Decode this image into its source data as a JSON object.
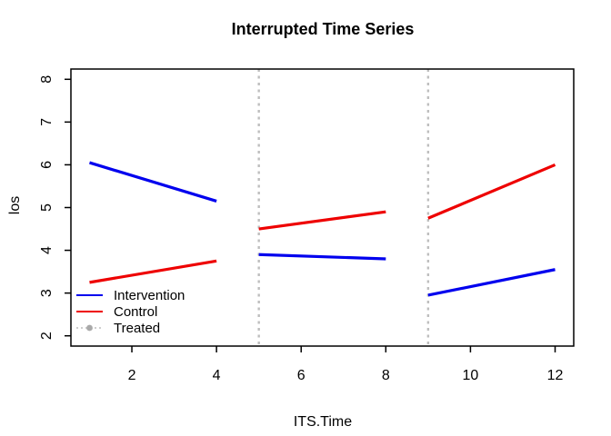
{
  "chart_data": {
    "type": "line",
    "title": "Interrupted Time Series",
    "xlabel": "ITS.Time",
    "ylabel": "los",
    "xlim": [
      0.56,
      12.44
    ],
    "ylim": [
      1.76,
      8.24
    ],
    "xticks": [
      2,
      4,
      6,
      8,
      10,
      12
    ],
    "yticks": [
      2,
      3,
      4,
      5,
      6,
      7,
      8
    ],
    "grid": false,
    "axis_color": "#000000",
    "background": "#FFFFFF",
    "legend": {
      "position": "bottom-left",
      "box": false,
      "items": [
        "Intervention",
        "Control",
        "Treated"
      ]
    },
    "series": [
      {
        "name": "Intervention",
        "color": "#0000EE",
        "line_style": "solid",
        "line_width": 3.2,
        "segments": [
          {
            "x": [
              1,
              4
            ],
            "y": [
              6.05,
              5.15
            ]
          },
          {
            "x": [
              5,
              8
            ],
            "y": [
              3.9,
              3.8
            ]
          },
          {
            "x": [
              9,
              12
            ],
            "y": [
              2.95,
              3.55
            ]
          }
        ]
      },
      {
        "name": "Control",
        "color": "#EE0000",
        "line_style": "solid",
        "line_width": 3.2,
        "segments": [
          {
            "x": [
              1,
              4
            ],
            "y": [
              3.25,
              3.75
            ]
          },
          {
            "x": [
              5,
              8
            ],
            "y": [
              4.5,
              4.9
            ]
          },
          {
            "x": [
              9,
              12
            ],
            "y": [
              4.75,
              6.0
            ]
          }
        ]
      },
      {
        "name": "Treated",
        "color": "#BEBEBE",
        "line_style": "dotted",
        "line_width": 2.4,
        "marker": "filled-circle",
        "marker_color": "#A9A9A9",
        "vlines_x": [
          5,
          9
        ]
      }
    ]
  }
}
